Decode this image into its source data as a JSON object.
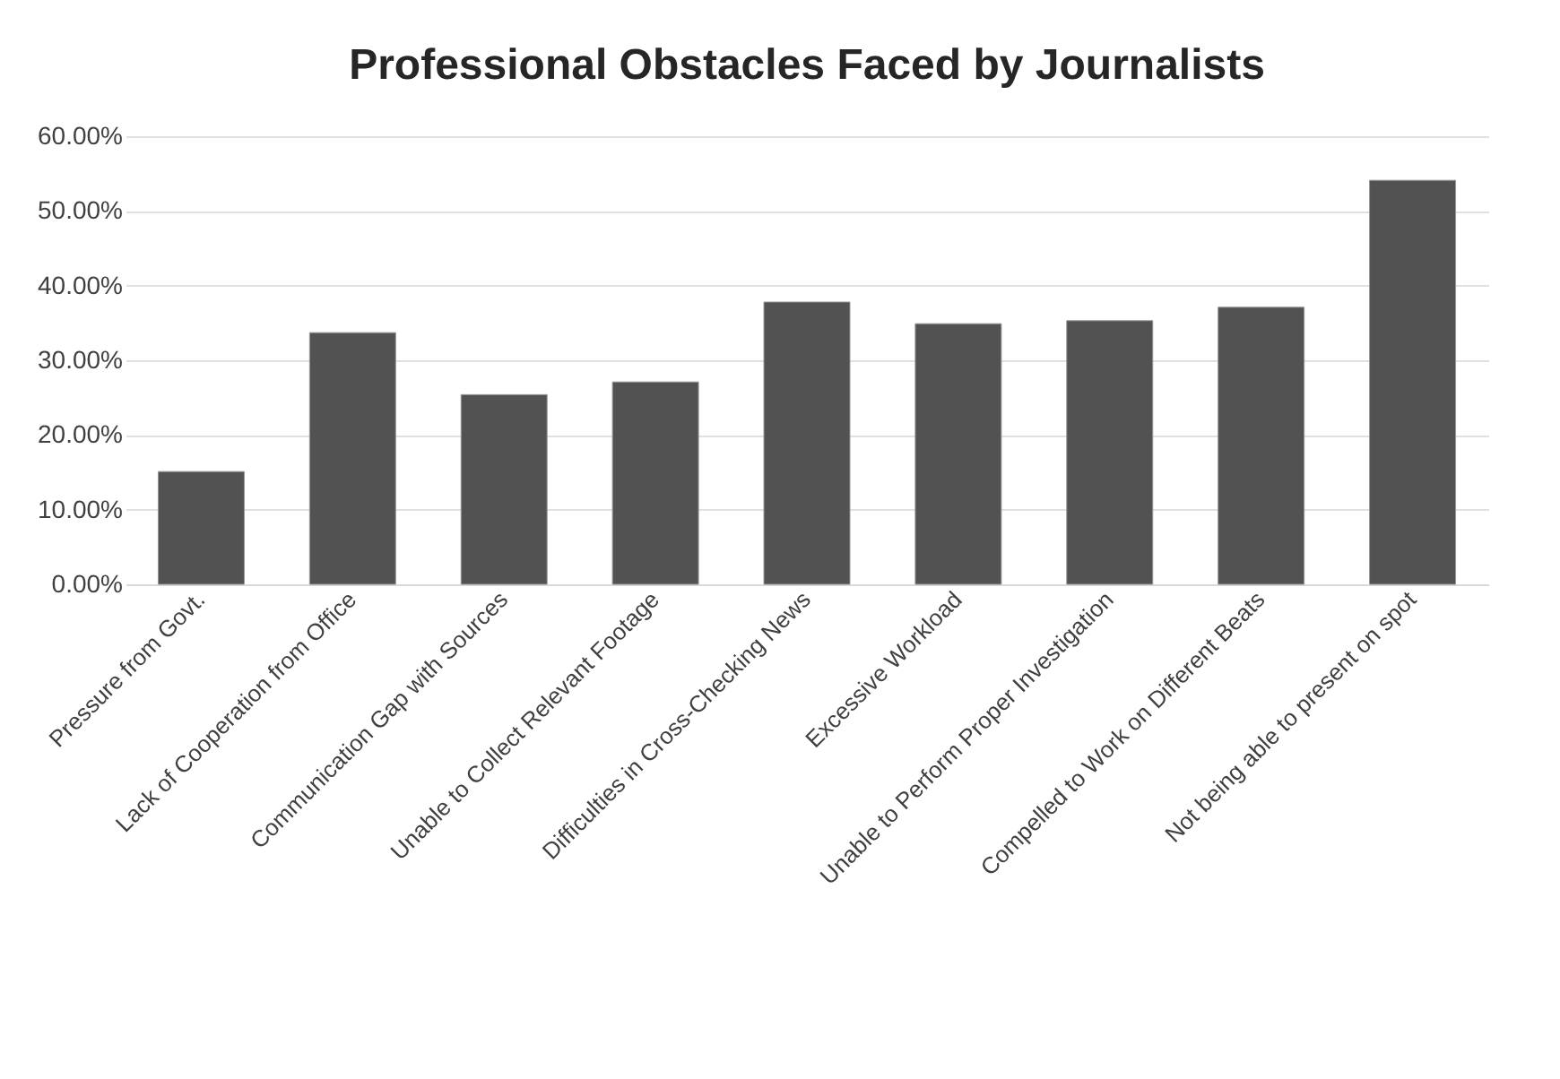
{
  "chart_data": {
    "type": "bar",
    "title": "Professional Obstacles Faced by Journalists",
    "categories": [
      "Pressure from Govt.",
      "Lack of Cooperation from Office",
      "Communication Gap with Sources",
      "Unable to Collect Relevant Footage",
      "Difficulties in Cross-Checking News",
      "Excessive Workload",
      "Unable to Perform Proper Investigation",
      "Compelled to Work on Different Beats",
      "Not being able to present on spot"
    ],
    "values": [
      15.1,
      33.7,
      25.4,
      27.1,
      37.8,
      34.9,
      35.3,
      37.1,
      54.1
    ],
    "color": "#525252",
    "ylim": [
      0,
      60
    ],
    "yticks": [
      {
        "value": 0,
        "label": "0.00%"
      },
      {
        "value": 10,
        "label": "10.00%"
      },
      {
        "value": 20,
        "label": "20.00%"
      },
      {
        "value": 30,
        "label": "30.00%"
      },
      {
        "value": 40,
        "label": "40.00%"
      },
      {
        "value": 50,
        "label": "50.00%"
      },
      {
        "value": 60,
        "label": "60.00%"
      }
    ],
    "grid": "y"
  }
}
